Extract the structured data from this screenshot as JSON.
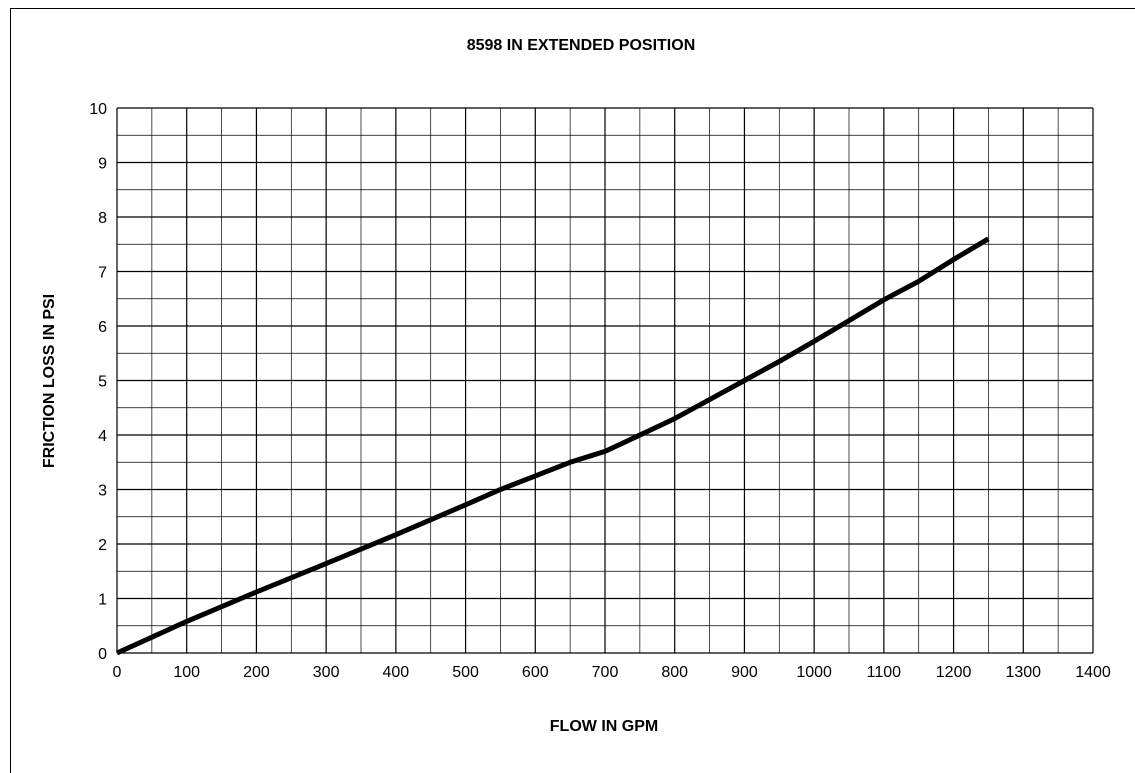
{
  "chart_data": {
    "type": "line",
    "title": "8598 IN EXTENDED POSITION",
    "xlabel": "FLOW IN GPM",
    "ylabel": "FRICTION LOSS IN PSI",
    "xlim": [
      0,
      1400
    ],
    "ylim": [
      0,
      10
    ],
    "x_ticks": [
      "0",
      "100",
      "200",
      "300",
      "400",
      "500",
      "600",
      "700",
      "800",
      "900",
      "1000",
      "1100",
      "1200",
      "1300",
      "1400"
    ],
    "y_ticks": [
      "0",
      "1",
      "2",
      "3",
      "4",
      "5",
      "6",
      "7",
      "8",
      "9",
      "10"
    ],
    "x_major_step": 100,
    "x_minor_step": 50,
    "y_major_step": 1,
    "y_minor_step": 0.5,
    "grid": true,
    "legend": "none",
    "series": [
      {
        "color": "#000000",
        "x": [
          0,
          100,
          200,
          300,
          400,
          500,
          550,
          600,
          650,
          700,
          750,
          800,
          850,
          900,
          950,
          1000,
          1050,
          1100,
          1150,
          1200,
          1250
        ],
        "y": [
          0,
          0.58,
          1.12,
          1.64,
          2.17,
          2.72,
          3.0,
          3.25,
          3.5,
          3.7,
          4.0,
          4.3,
          4.65,
          5.0,
          5.35,
          5.72,
          6.1,
          6.48,
          6.82,
          7.22,
          7.6
        ]
      }
    ]
  }
}
